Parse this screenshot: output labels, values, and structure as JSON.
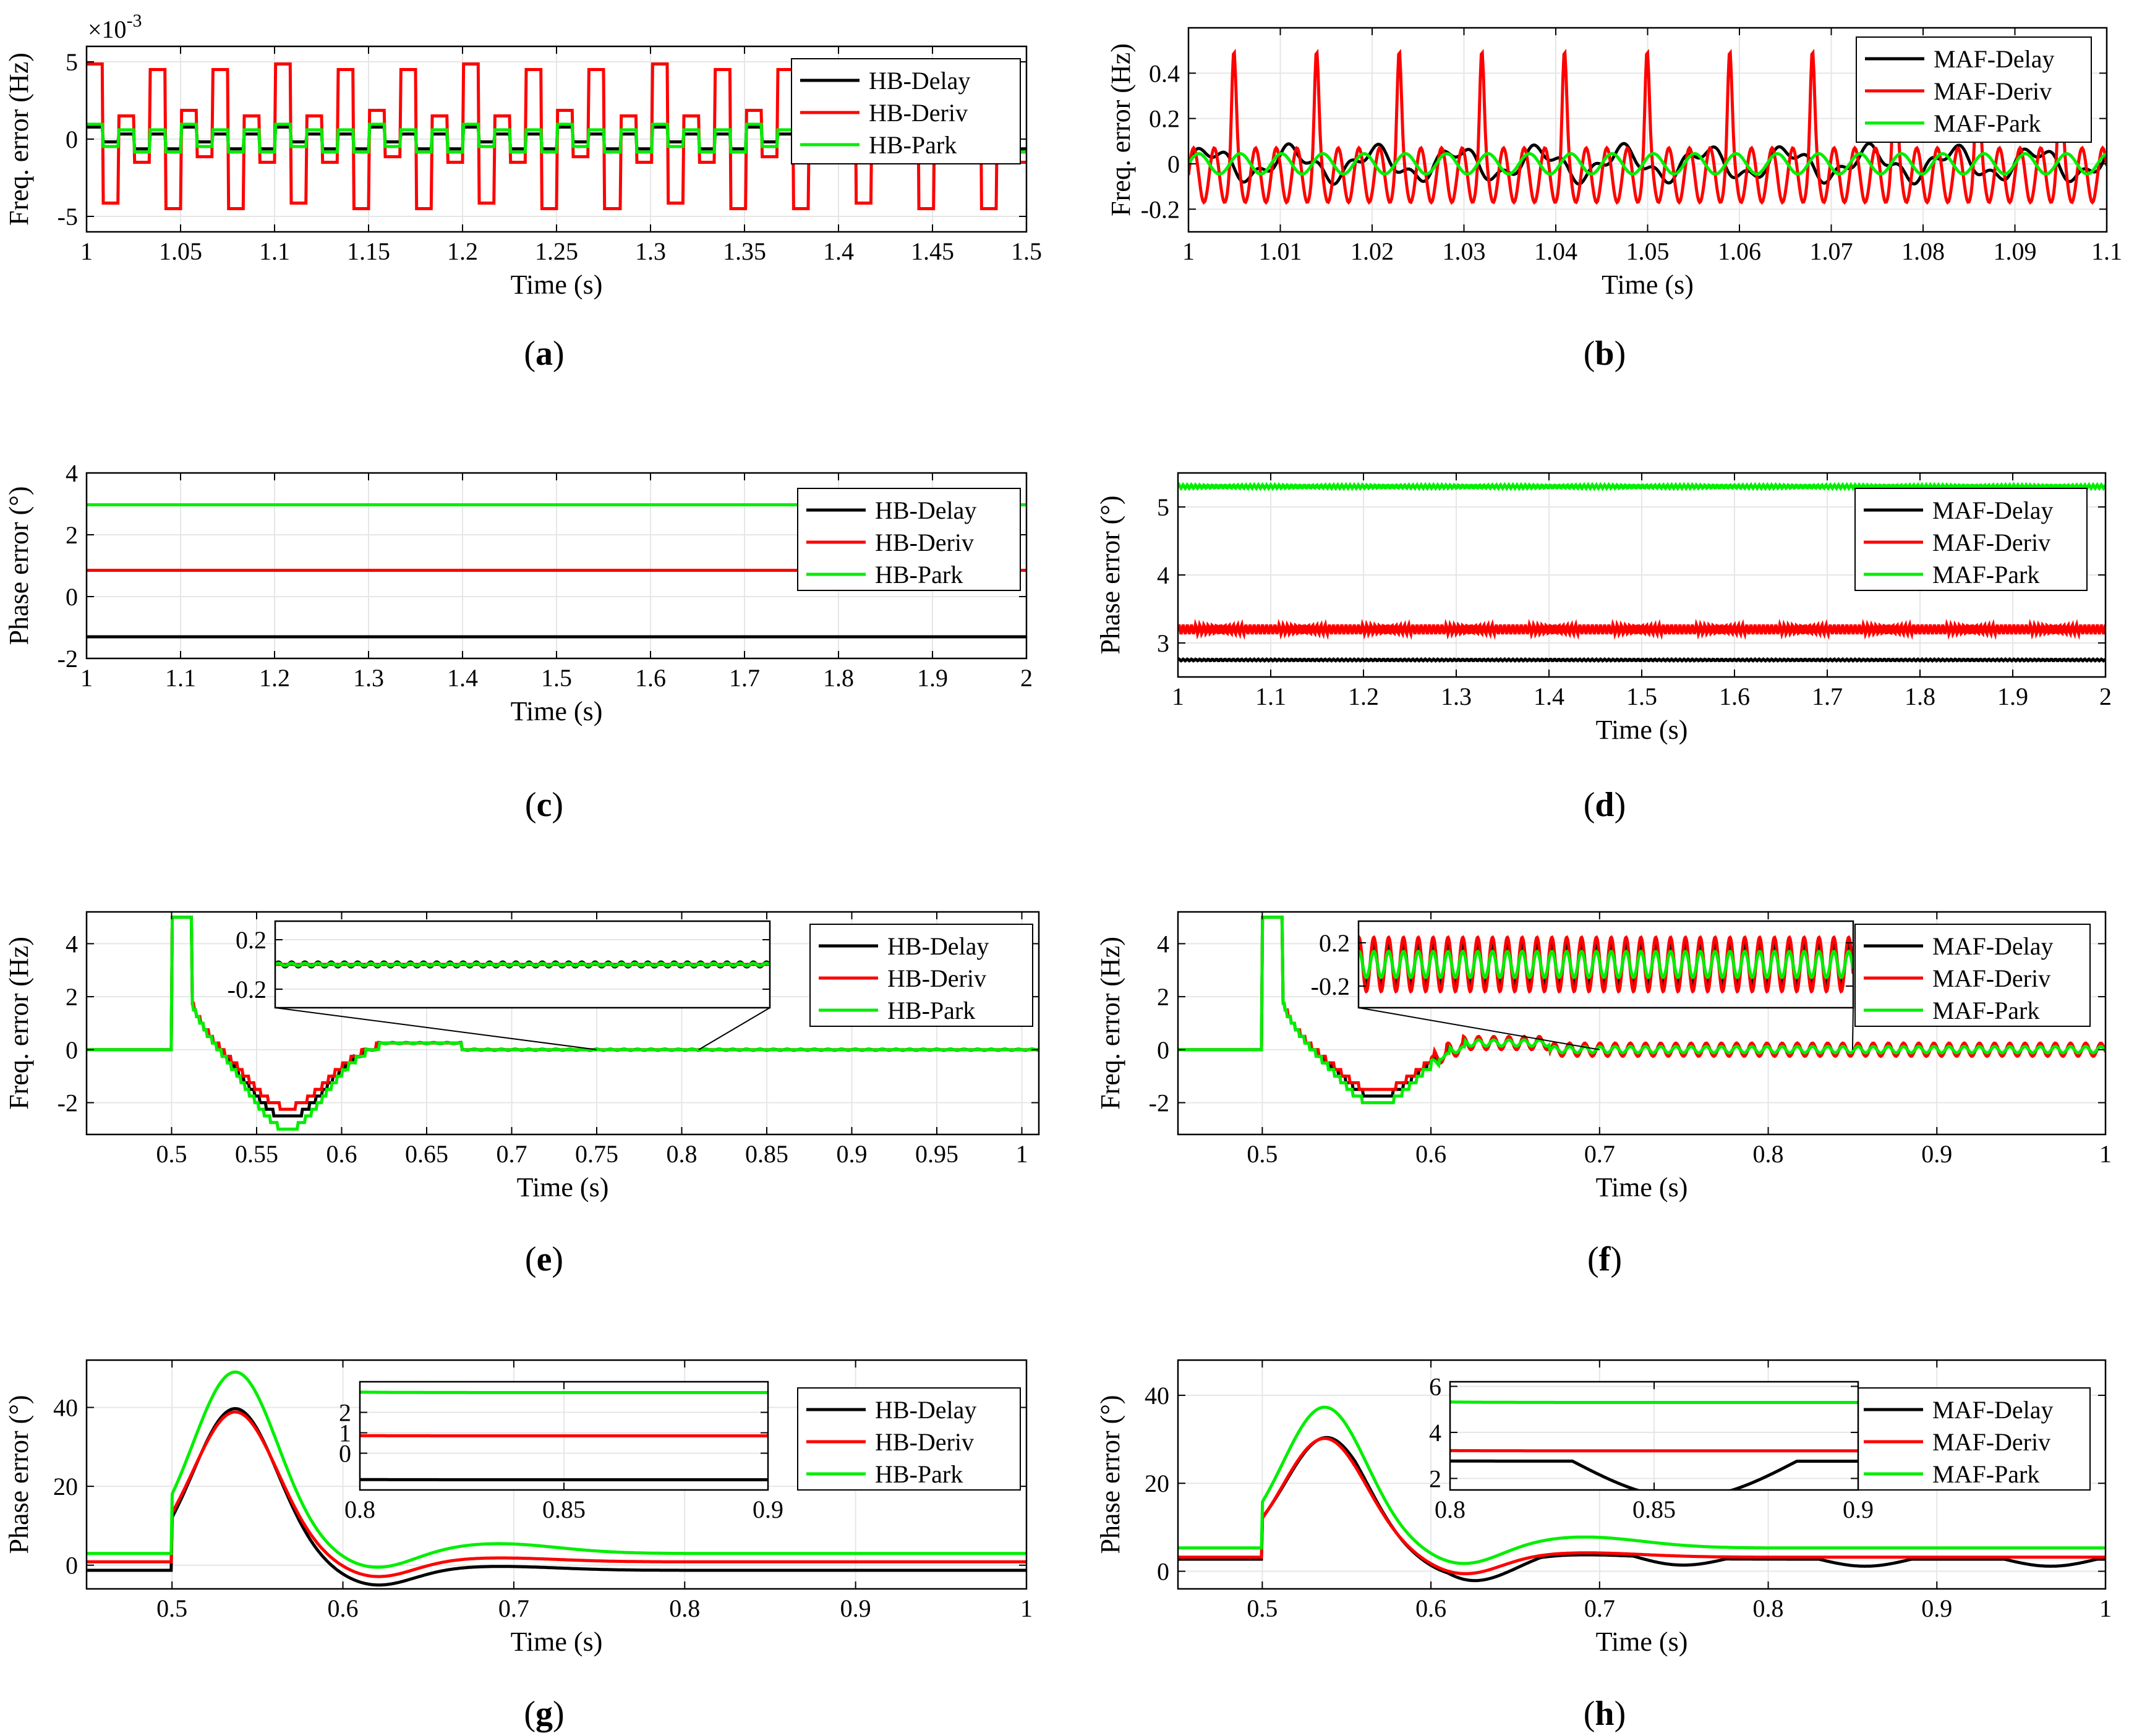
{
  "figure": {
    "panels": [
      {
        "id": "a",
        "caption_prefix": "(",
        "caption_letter": "a",
        "caption_suffix": ")"
      },
      {
        "id": "b",
        "caption_prefix": "(",
        "caption_letter": "b",
        "caption_suffix": ")"
      },
      {
        "id": "c",
        "caption_prefix": "(",
        "caption_letter": "c",
        "caption_suffix": ")"
      },
      {
        "id": "d",
        "caption_prefix": "(",
        "caption_letter": "d",
        "caption_suffix": ")"
      },
      {
        "id": "e",
        "caption_prefix": "(",
        "caption_letter": "e",
        "caption_suffix": ")"
      },
      {
        "id": "f",
        "caption_prefix": "(",
        "caption_letter": "f",
        "caption_suffix": ")"
      },
      {
        "id": "g",
        "caption_prefix": "(",
        "caption_letter": "g",
        "caption_suffix": ")"
      },
      {
        "id": "h",
        "caption_prefix": "(",
        "caption_letter": "h",
        "caption_suffix": ")"
      }
    ]
  },
  "colors": {
    "black": "#000000",
    "red": "#ff0000",
    "green": "#00ee00",
    "grid": "#e6e6e6"
  },
  "chart_data": [
    {
      "id": "a",
      "type": "line",
      "xlabel": "Time (s)",
      "ylabel": "Freq. error (Hz)",
      "xlim": [
        1,
        1.5
      ],
      "ylim": [
        -6,
        6
      ],
      "xticks": [
        1,
        1.05,
        1.1,
        1.15,
        1.2,
        1.25,
        1.3,
        1.35,
        1.4,
        1.45,
        1.5
      ],
      "xtick_labels": [
        "1",
        "1.05",
        "1.1",
        "1.15",
        "1.2",
        "1.25",
        "1.3",
        "1.35",
        "1.4",
        "1.45",
        "1.5"
      ],
      "yticks": [
        -5,
        0,
        5
      ],
      "ytick_labels": [
        "-5",
        "0",
        "5"
      ],
      "y_multiplier": "×10",
      "y_multiplier_exp": "-3",
      "legend": [
        "HB-Delay",
        "HB-Deriv",
        "HB-Park"
      ],
      "series": [
        {
          "name": "HB-Delay",
          "color": "black",
          "kind": "square",
          "base": 0.0,
          "amp": 0.8,
          "period": 0.0167,
          "noise": 0.5
        },
        {
          "name": "HB-Deriv",
          "color": "red",
          "kind": "spiky",
          "base": 0.0,
          "amp": 5.0,
          "period": 0.0167,
          "noise": 1.2
        },
        {
          "name": "HB-Park",
          "color": "green",
          "kind": "square",
          "base": 0.0,
          "amp": 1.2,
          "period": 0.0167,
          "noise": 0.4
        }
      ]
    },
    {
      "id": "b",
      "type": "line",
      "xlabel": "Time (s)",
      "ylabel": "Freq. error (Hz)",
      "xlim": [
        1,
        1.1
      ],
      "ylim": [
        -0.3,
        0.6
      ],
      "xticks": [
        1,
        1.01,
        1.02,
        1.03,
        1.04,
        1.05,
        1.06,
        1.07,
        1.08,
        1.09,
        1.1
      ],
      "xtick_labels": [
        "1",
        "1.01",
        "1.02",
        "1.03",
        "1.04",
        "1.05",
        "1.06",
        "1.07",
        "1.08",
        "1.09",
        "1.1"
      ],
      "yticks": [
        -0.2,
        0,
        0.2,
        0.4
      ],
      "ytick_labels": [
        "-0.2",
        "0",
        "0.2",
        "0.4"
      ],
      "legend": [
        "MAF-Delay",
        "MAF-Deriv",
        "MAF-Park"
      ],
      "series": [
        {
          "name": "MAF-Delay",
          "color": "black",
          "kind": "wave",
          "base": 0.0,
          "amp": 0.06,
          "period": 0.009,
          "noise": 0.03
        },
        {
          "name": "MAF-Deriv",
          "color": "red",
          "kind": "peaks",
          "base": 0.0,
          "amp": 0.5,
          "period": 0.009,
          "noise": 0.0
        },
        {
          "name": "MAF-Park",
          "color": "green",
          "kind": "wave",
          "base": 0.0,
          "amp": 0.045,
          "period": 0.0045,
          "noise": 0.0
        }
      ]
    },
    {
      "id": "c",
      "type": "line",
      "xlabel": "Time (s)",
      "ylabel": "Phase error (°)",
      "xlim": [
        1,
        2
      ],
      "ylim": [
        -2,
        4
      ],
      "xticks": [
        1,
        1.1,
        1.2,
        1.3,
        1.4,
        1.5,
        1.6,
        1.7,
        1.8,
        1.9,
        2
      ],
      "xtick_labels": [
        "1",
        "1.1",
        "1.2",
        "1.3",
        "1.4",
        "1.5",
        "1.6",
        "1.7",
        "1.8",
        "1.9",
        "2"
      ],
      "yticks": [
        -2,
        0,
        2,
        4
      ],
      "ytick_labels": [
        "-2",
        "0",
        "2",
        "4"
      ],
      "legend": [
        "HB-Delay",
        "HB-Deriv",
        "HB-Park"
      ],
      "series": [
        {
          "name": "HB-Delay",
          "color": "black",
          "kind": "flat",
          "base": -1.3,
          "amp": 0,
          "period": 0.01,
          "noise": 0
        },
        {
          "name": "HB-Deriv",
          "color": "red",
          "kind": "flat",
          "base": 0.85,
          "amp": 0,
          "period": 0.01,
          "noise": 0
        },
        {
          "name": "HB-Park",
          "color": "green",
          "kind": "flat",
          "base": 2.97,
          "amp": 0,
          "period": 0.01,
          "noise": 0
        }
      ]
    },
    {
      "id": "d",
      "type": "line",
      "xlabel": "Time (s)",
      "ylabel": "Phase error (°)",
      "xlim": [
        1,
        2
      ],
      "ylim": [
        2.5,
        5.5
      ],
      "xticks": [
        1,
        1.1,
        1.2,
        1.3,
        1.4,
        1.5,
        1.6,
        1.7,
        1.8,
        1.9,
        2
      ],
      "xtick_labels": [
        "1",
        "1.1",
        "1.2",
        "1.3",
        "1.4",
        "1.5",
        "1.6",
        "1.7",
        "1.8",
        "1.9",
        "2"
      ],
      "yticks": [
        3,
        4,
        5
      ],
      "ytick_labels": [
        "3",
        "4",
        "5"
      ],
      "legend": [
        "MAF-Delay",
        "MAF-Deriv",
        "MAF-Park"
      ],
      "series": [
        {
          "name": "MAF-Delay",
          "color": "black",
          "kind": "wave",
          "base": 2.75,
          "amp": 0.012,
          "period": 0.0045,
          "noise": 0
        },
        {
          "name": "MAF-Deriv",
          "color": "red",
          "kind": "wave",
          "base": 3.2,
          "amp": 0.07,
          "period": 0.0045,
          "noise": 0
        },
        {
          "name": "MAF-Park",
          "color": "green",
          "kind": "wave",
          "base": 5.3,
          "amp": 0.025,
          "period": 0.0045,
          "noise": 0
        }
      ]
    },
    {
      "id": "e",
      "type": "line",
      "xlabel": "Time (s)",
      "ylabel": "Freq. error (Hz)",
      "xlim": [
        0.45,
        1.01
      ],
      "ylim": [
        -3.2,
        5.2
      ],
      "xticks": [
        0.5,
        0.55,
        0.6,
        0.65,
        0.7,
        0.75,
        0.8,
        0.85,
        0.9,
        0.95,
        1
      ],
      "xtick_labels": [
        "0.5",
        "0.55",
        "0.6",
        "0.65",
        "0.7",
        "0.75",
        "0.8",
        "0.85",
        "0.9",
        "0.95",
        "1"
      ],
      "yticks": [
        -2,
        0,
        2,
        4
      ],
      "ytick_labels": [
        "-2",
        "0",
        "2",
        "4"
      ],
      "legend": [
        "HB-Delay",
        "HB-Deriv",
        "HB-Park"
      ],
      "series": [
        {
          "name": "HB-Delay",
          "color": "black",
          "kind": "stepfreq",
          "base": 0,
          "amp": -2.6,
          "period": 0.008,
          "noise": 0.02
        },
        {
          "name": "HB-Deriv",
          "color": "red",
          "kind": "stepfreq",
          "base": 0,
          "amp": -2.2,
          "period": 0.008,
          "noise": 0.0
        },
        {
          "name": "HB-Park",
          "color": "green",
          "kind": "stepfreq",
          "base": 0,
          "amp": -3.0,
          "period": 0.008,
          "noise": 0.01
        }
      ],
      "inset": {
        "xlim": [
          0.7,
          1.0
        ],
        "ylim": [
          -0.35,
          0.35
        ],
        "yticks": [
          -0.2,
          0.2
        ],
        "ytick_labels": [
          "-0.2",
          "0.2"
        ],
        "xticks": [],
        "xtick_labels": []
      }
    },
    {
      "id": "f",
      "type": "line",
      "xlabel": "Time (s)",
      "ylabel": "Freq. error (Hz)",
      "xlim": [
        0.45,
        1
      ],
      "ylim": [
        -3.2,
        5.2
      ],
      "xticks": [
        0.5,
        0.6,
        0.7,
        0.8,
        0.9,
        1
      ],
      "xtick_labels": [
        "0.5",
        "0.6",
        "0.7",
        "0.8",
        "0.9",
        "1"
      ],
      "yticks": [
        -2,
        0,
        2,
        4
      ],
      "ytick_labels": [
        "-2",
        "0",
        "2",
        "4"
      ],
      "legend": [
        "MAF-Delay",
        "MAF-Deriv",
        "MAF-Park"
      ],
      "series": [
        {
          "name": "MAF-Delay",
          "color": "black",
          "kind": "stepfreq",
          "base": 0,
          "amp": -1.8,
          "period": 0.009,
          "noise": 0.18
        },
        {
          "name": "MAF-Deriv",
          "color": "red",
          "kind": "stepfreq",
          "base": 0,
          "amp": -1.6,
          "period": 0.009,
          "noise": 0.25
        },
        {
          "name": "MAF-Park",
          "color": "green",
          "kind": "stepfreq",
          "base": 0,
          "amp": -2.1,
          "period": 0.009,
          "noise": 0.12
        }
      ],
      "inset": {
        "xlim": [
          0.7,
          1.0
        ],
        "ylim": [
          -0.4,
          0.4
        ],
        "yticks": [
          -0.2,
          0.2
        ],
        "ytick_labels": [
          "-0.2",
          "0.2"
        ],
        "xticks": [],
        "xtick_labels": []
      }
    },
    {
      "id": "g",
      "type": "line",
      "xlabel": "Time (s)",
      "ylabel": "Phase error (°)",
      "xlim": [
        0.45,
        1
      ],
      "ylim": [
        -6,
        52
      ],
      "xticks": [
        0.5,
        0.6,
        0.7,
        0.8,
        0.9,
        1
      ],
      "xtick_labels": [
        "0.5",
        "0.6",
        "0.7",
        "0.8",
        "0.9",
        "1"
      ],
      "yticks": [
        0,
        20,
        40
      ],
      "ytick_labels": [
        "0",
        "20",
        "40"
      ],
      "legend": [
        "HB-Delay",
        "HB-Deriv",
        "HB-Park"
      ],
      "series": [
        {
          "name": "HB-Delay",
          "color": "black",
          "kind": "phase",
          "base": -1.3,
          "amp": 41,
          "period": 0.01,
          "noise": 0
        },
        {
          "name": "HB-Deriv",
          "color": "red",
          "kind": "phase",
          "base": 0.85,
          "amp": 38,
          "period": 0.01,
          "noise": 0
        },
        {
          "name": "HB-Park",
          "color": "green",
          "kind": "phase",
          "base": 2.97,
          "amp": 46,
          "period": 0.01,
          "noise": 0
        }
      ],
      "inset": {
        "xlim": [
          0.8,
          0.9
        ],
        "ylim": [
          -1.8,
          3.5
        ],
        "yticks": [
          0,
          1,
          2
        ],
        "ytick_labels": [
          "0",
          "1",
          "2"
        ],
        "xticks": [
          0.8,
          0.85,
          0.9
        ],
        "xtick_labels": [
          "0.8",
          "0.85",
          "0.9"
        ]
      }
    },
    {
      "id": "h",
      "type": "line",
      "xlabel": "Time (s)",
      "ylabel": "Phase error (°)",
      "xlim": [
        0.45,
        1
      ],
      "ylim": [
        -4,
        48
      ],
      "xticks": [
        0.5,
        0.6,
        0.7,
        0.8,
        0.9,
        1
      ],
      "xtick_labels": [
        "0.5",
        "0.6",
        "0.7",
        "0.8",
        "0.9",
        "1"
      ],
      "yticks": [
        0,
        20,
        40
      ],
      "ytick_labels": [
        "0",
        "20",
        "40"
      ],
      "legend": [
        "MAF-Delay",
        "MAF-Deriv",
        "MAF-Park"
      ],
      "series": [
        {
          "name": "MAF-Delay",
          "color": "black",
          "kind": "phase",
          "base": 2.75,
          "amp": 29,
          "period": 0.11,
          "noise": 0
        },
        {
          "name": "MAF-Deriv",
          "color": "red",
          "kind": "phase",
          "base": 3.2,
          "amp": 27,
          "period": 0.0045,
          "noise": 0
        },
        {
          "name": "MAF-Park",
          "color": "green",
          "kind": "phase",
          "base": 5.3,
          "amp": 32,
          "period": 0.0045,
          "noise": 0
        }
      ],
      "inset": {
        "xlim": [
          0.8,
          0.9
        ],
        "ylim": [
          1.5,
          6.2
        ],
        "yticks": [
          2,
          4,
          6
        ],
        "ytick_labels": [
          "2",
          "4",
          "6"
        ],
        "xticks": [
          0.8,
          0.85,
          0.9
        ],
        "xtick_labels": [
          "0.8",
          "0.85",
          "0.9"
        ]
      }
    }
  ]
}
